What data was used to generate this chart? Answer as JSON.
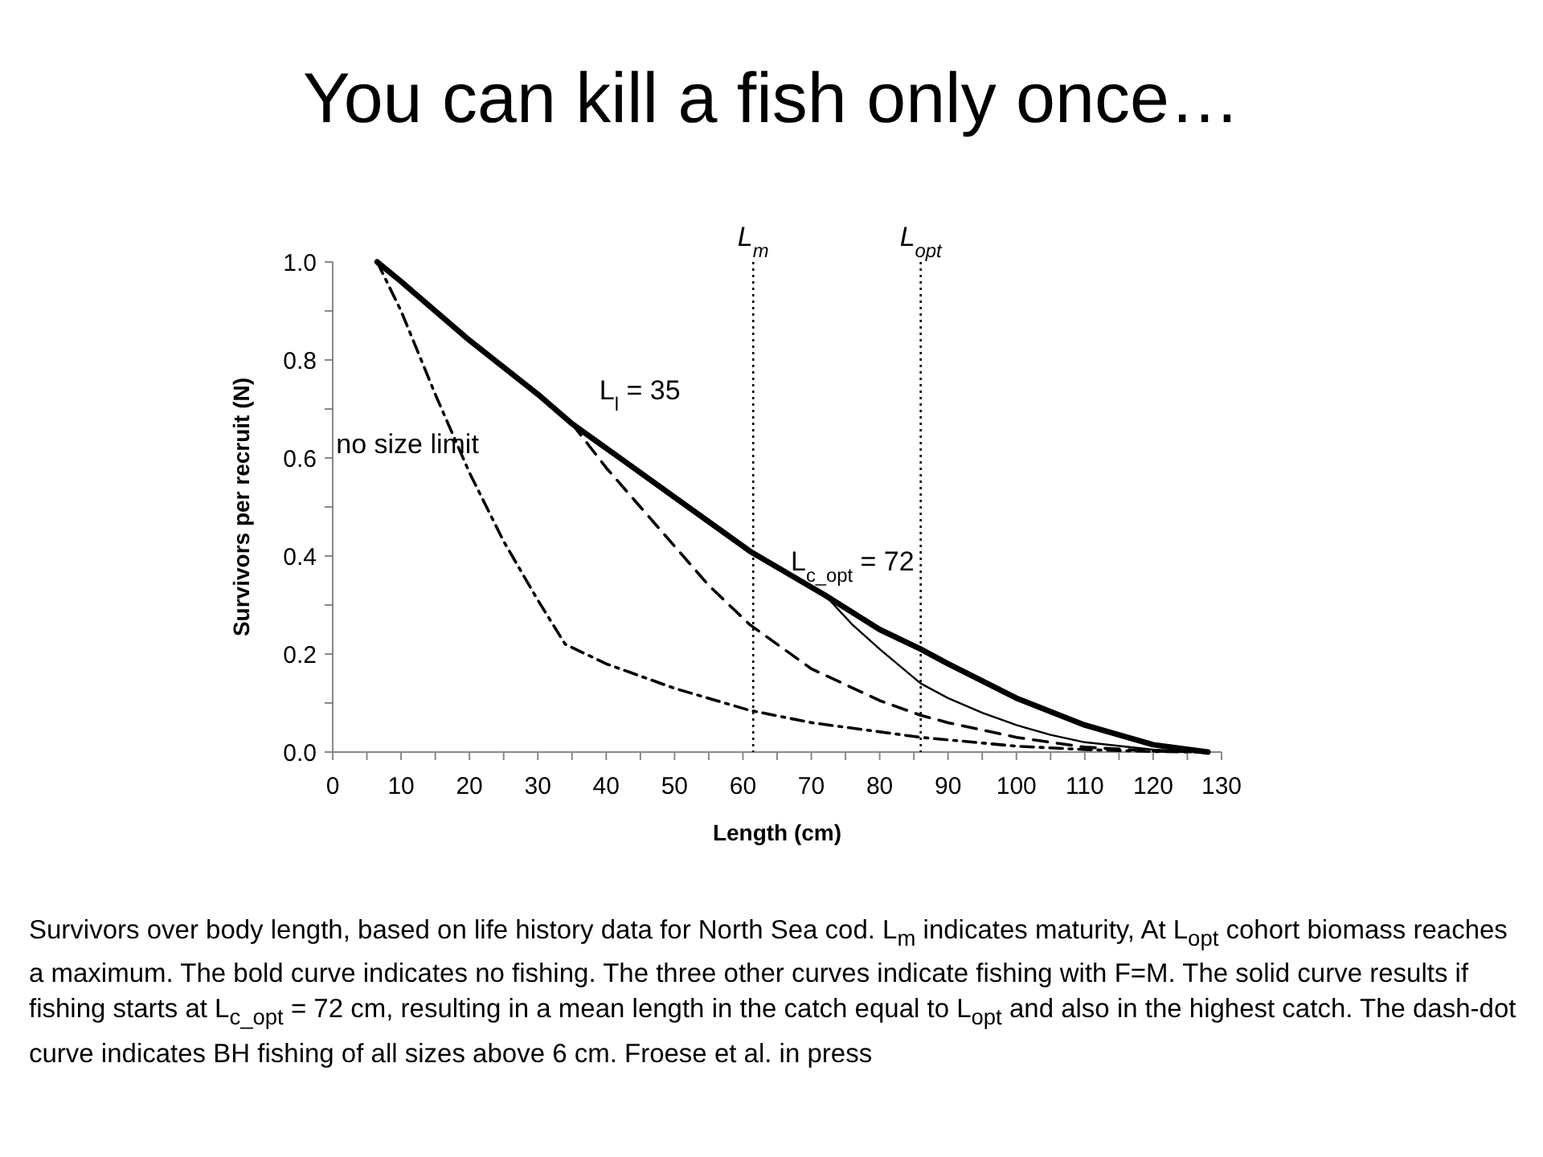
{
  "chart_data": {
    "type": "line",
    "title": "You can kill a fish only once…",
    "xlabel": "Length (cm)",
    "ylabel": "Survivors per recruit (N)",
    "xlim": [
      0,
      130
    ],
    "ylim": [
      0,
      1
    ],
    "xticks": [
      0,
      {
        "value": 5,
        "label": null
      },
      10,
      {
        "value": 15,
        "label": null
      },
      20,
      {
        "value": 25,
        "label": null
      },
      30,
      {
        "value": 35,
        "label": null
      },
      40,
      {
        "value": 45,
        "label": null
      },
      50,
      {
        "value": 55,
        "label": null
      },
      60,
      {
        "value": 65,
        "label": null
      },
      70,
      {
        "value": 75,
        "label": null
      },
      80,
      {
        "value": 85,
        "label": null
      },
      90,
      {
        "value": 95,
        "label": null
      },
      100,
      {
        "value": 105,
        "label": null
      },
      110,
      {
        "value": 115,
        "label": null
      },
      120,
      {
        "value": 125,
        "label": null
      },
      130
    ],
    "yticks": [
      {
        "value": 0,
        "label": "0.0"
      },
      {
        "value": 0.1,
        "label": null
      },
      {
        "value": 0.2,
        "label": "0.2"
      },
      {
        "value": 0.3,
        "label": null
      },
      {
        "value": 0.4,
        "label": "0.4"
      },
      {
        "value": 0.5,
        "label": null
      },
      {
        "value": 0.6,
        "label": "0.6"
      },
      {
        "value": 0.7,
        "label": null
      },
      {
        "value": 0.8,
        "label": "0.8"
      },
      {
        "value": 0.9,
        "label": null
      },
      {
        "value": 1,
        "label": "1.0"
      }
    ],
    "grid": false,
    "marker": "none",
    "series": [
      {
        "color": "#000000",
        "line_style": "solid",
        "x": [
          6.5,
          10,
          20,
          30,
          35,
          40,
          50,
          61,
          72,
          80,
          86,
          90,
          100,
          110,
          120,
          128
        ],
        "values": [
          1.0,
          0.96,
          0.84,
          0.73,
          0.67,
          0.62,
          0.52,
          0.41,
          0.32,
          0.25,
          0.21,
          0.18,
          0.11,
          0.055,
          0.015,
          0.0
        ]
      },
      {
        "color": "#000000",
        "line_style": "dashed",
        "x": [
          35,
          40,
          45,
          50,
          55,
          61,
          70,
          80,
          86,
          90,
          100,
          110,
          120,
          128
        ],
        "values": [
          0.67,
          0.58,
          0.5,
          0.42,
          0.34,
          0.26,
          0.17,
          0.105,
          0.075,
          0.06,
          0.03,
          0.01,
          0.002,
          0.0
        ]
      },
      {
        "color": "#000000",
        "line_style": "solid",
        "x": [
          72,
          76,
          80,
          86,
          90,
          95,
          100,
          105,
          110,
          120,
          128
        ],
        "values": [
          0.32,
          0.26,
          0.21,
          0.14,
          0.11,
          0.08,
          0.055,
          0.035,
          0.02,
          0.005,
          0.0
        ]
      },
      {
        "color": "#000000",
        "line_style": "dashdot",
        "x": [
          6.5,
          10,
          15,
          20,
          25,
          30,
          34,
          40,
          50,
          61,
          70,
          86,
          100,
          110,
          120,
          128
        ],
        "values": [
          1.0,
          0.9,
          0.73,
          0.57,
          0.43,
          0.31,
          0.22,
          0.18,
          0.13,
          0.085,
          0.06,
          0.03,
          0.012,
          0.005,
          0.001,
          0.0
        ]
      }
    ],
    "ref_lines": [
      {
        "axis": "x",
        "value": 61.5,
        "label": "L$_{m}$",
        "line_style": "dotted",
        "color": "#000000"
      },
      {
        "axis": "x",
        "value": 86,
        "label": "L$_{opt}$",
        "line_style": "dotted",
        "color": "#000000"
      }
    ],
    "annotations": [
      "L$_{l}$ = 35",
      "L$_{c_opt}$ = 72",
      "no size limit",
      "Survivors over body length, based on life history data for North Sea cod. L$_{m}$ indicates maturity, At L$_{opt}$ cohort biomass reaches a maximum. The bold curve indicates no fishing. The three other curves indicate fishing with F=M. The solid curve results if fishing starts at L$_{c_opt}$ = 72 cm, resulting in a mean length in the catch equal to L$_{opt}$ and also in the highest catch. The dash-dot curve indicates BH fishing of all sizes above 6 cm.  Froese et al. in press"
    ]
  }
}
